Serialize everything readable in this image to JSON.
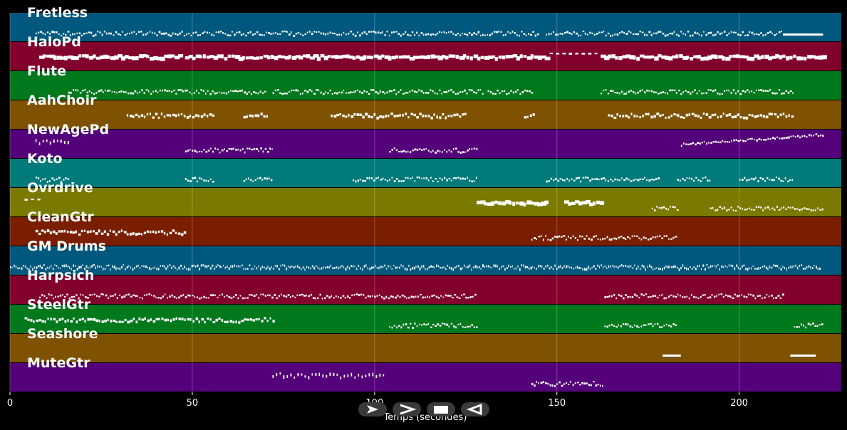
{
  "tracks": [
    {
      "name": "Fretless",
      "color": "#00587e"
    },
    {
      "name": "HaloPd",
      "color": "#82002c"
    },
    {
      "name": "Flute",
      "color": "#00781c"
    },
    {
      "name": "AahChoir",
      "color": "#7e5200"
    },
    {
      "name": "NewAgePd",
      "color": "#54007a"
    },
    {
      "name": "Koto",
      "color": "#007a7a"
    },
    {
      "name": "Ovrdrive",
      "color": "#7a7a00"
    },
    {
      "name": "CleanGtr",
      "color": "#7a1e00"
    },
    {
      "name": "GM Drums",
      "color": "#00587e"
    },
    {
      "name": "Harpsich",
      "color": "#82002c"
    },
    {
      "name": "SteelGtr",
      "color": "#00781c"
    },
    {
      "name": "Seashore",
      "color": "#7e5200"
    },
    {
      "name": "MuteGtr",
      "color": "#54007a"
    }
  ],
  "axis": {
    "xlabel": "Temps (secondes)",
    "xlim": [
      0,
      228
    ],
    "ticks": [
      "0",
      "50",
      "100",
      "150",
      "200"
    ],
    "tick_values": [
      0,
      50,
      100,
      150,
      200
    ]
  },
  "controls": [
    {
      "name": "play-button",
      "icon": "play-icon"
    },
    {
      "name": "forward-button",
      "icon": "chevron-right-icon"
    },
    {
      "name": "stop-button",
      "icon": "stop-icon"
    },
    {
      "name": "back-button",
      "icon": "triangle-left-icon"
    }
  ],
  "note_color": "#ffffff",
  "notes": [
    {
      "track": 0,
      "segments": [
        [
          7,
          145,
          "dense"
        ],
        [
          147,
          212,
          "dense"
        ],
        [
          212,
          223,
          "long"
        ]
      ]
    },
    {
      "track": 1,
      "segments": [
        [
          8,
          47,
          "blocks"
        ],
        [
          48,
          147,
          "blocks"
        ],
        [
          148,
          162,
          "dashes"
        ],
        [
          162,
          223,
          "blocks"
        ]
      ]
    },
    {
      "track": 2,
      "segments": [
        [
          16,
          70,
          "dense"
        ],
        [
          72,
          130,
          "dense"
        ],
        [
          131,
          143,
          "dense"
        ],
        [
          162,
          215,
          "dense"
        ]
      ]
    },
    {
      "track": 3,
      "segments": [
        [
          32,
          56,
          "phrases"
        ],
        [
          64,
          71,
          "phrases"
        ],
        [
          88,
          125,
          "phrases"
        ],
        [
          141,
          144,
          "phrases"
        ],
        [
          164,
          183,
          "phrases"
        ],
        [
          183,
          215,
          "phrases"
        ]
      ]
    },
    {
      "track": 4,
      "segments": [
        [
          7,
          16,
          "sparse"
        ],
        [
          48,
          72,
          "dense"
        ],
        [
          104,
          128,
          "dense"
        ],
        [
          184,
          223,
          "rising"
        ]
      ]
    },
    {
      "track": 5,
      "segments": [
        [
          7,
          16,
          "dense"
        ],
        [
          48,
          56,
          "dense"
        ],
        [
          64,
          72,
          "dense"
        ],
        [
          94,
          128,
          "dense"
        ],
        [
          147,
          178,
          "dense"
        ],
        [
          183,
          192,
          "dense"
        ],
        [
          200,
          215,
          "dense"
        ]
      ]
    },
    {
      "track": 6,
      "segments": [
        [
          4,
          8,
          "dashes"
        ],
        [
          128,
          147,
          "blocks"
        ],
        [
          152,
          162,
          "blocks"
        ],
        [
          176,
          183,
          "dense"
        ],
        [
          192,
          223,
          "dense"
        ]
      ]
    },
    {
      "track": 7,
      "segments": [
        [
          7,
          48,
          "phrases"
        ],
        [
          143,
          183,
          "dense"
        ]
      ]
    },
    {
      "track": 8,
      "segments": [
        [
          0,
          222,
          "drums"
        ]
      ]
    },
    {
      "track": 9,
      "segments": [
        [
          8,
          128,
          "dense"
        ],
        [
          163,
          212,
          "dense"
        ]
      ]
    },
    {
      "track": 10,
      "segments": [
        [
          4,
          72,
          "phrases"
        ],
        [
          104,
          128,
          "dense"
        ],
        [
          163,
          183,
          "dense"
        ],
        [
          215,
          223,
          "dense"
        ]
      ]
    },
    {
      "track": 11,
      "segments": [
        [
          179,
          184,
          "long"
        ],
        [
          214,
          221,
          "long"
        ]
      ]
    },
    {
      "track": 12,
      "segments": [
        [
          72,
          103,
          "sparse"
        ],
        [
          143,
          163,
          "dense"
        ]
      ]
    }
  ]
}
